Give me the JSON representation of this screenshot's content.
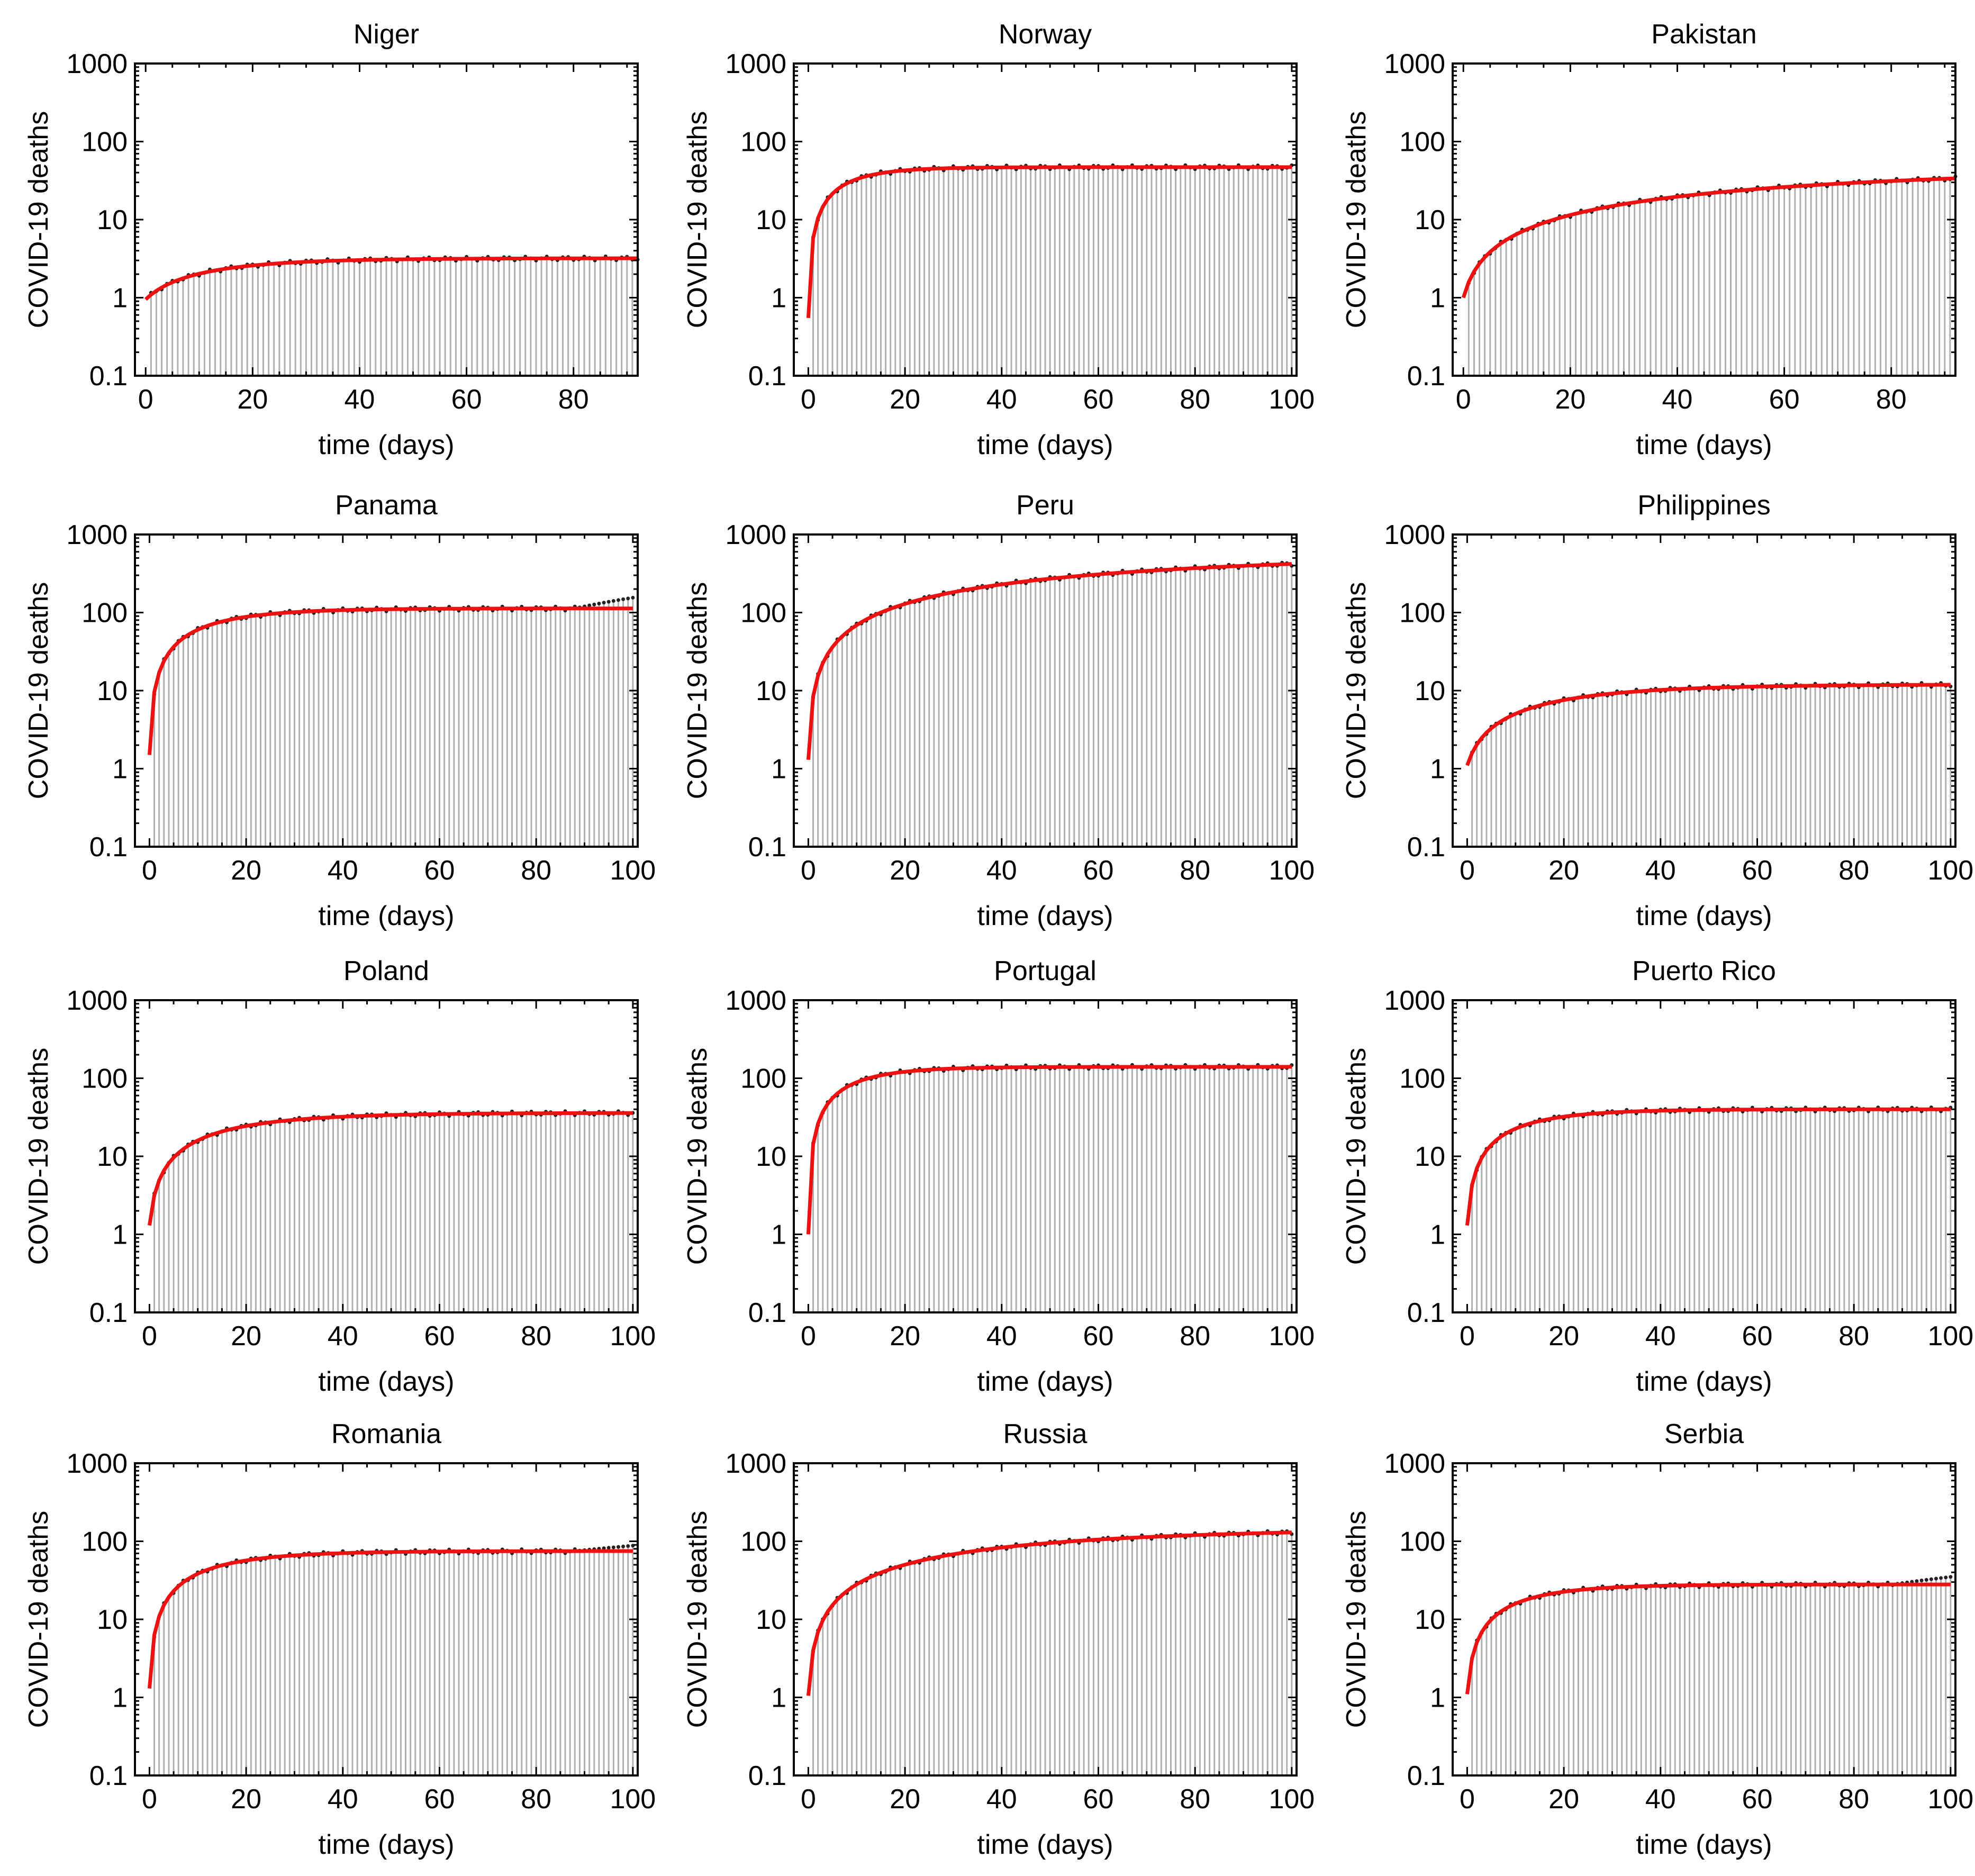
{
  "ylabel": "COVID-19 deaths",
  "xlabel": "time (days)",
  "y_ticks": [
    "0.1",
    "1",
    "10",
    "100",
    "1000"
  ],
  "colors": {
    "fit": "#ee1111",
    "points": "#222222",
    "bars": "#b0b0b0",
    "frame": "#000000"
  },
  "chart_data": [
    {
      "type": "line",
      "title": "Niger",
      "xlim": [
        -2,
        92
      ],
      "x_ticks": [
        0,
        20,
        40,
        60,
        80
      ],
      "ylim": [
        0.1,
        1000
      ],
      "yscale": "log",
      "n_days": 92,
      "fit": {
        "A": 3.2,
        "k": 0.065,
        "y0": 0.95
      }
    },
    {
      "type": "line",
      "title": "Norway",
      "xlim": [
        -3,
        101
      ],
      "x_ticks": [
        0,
        20,
        40,
        60,
        80,
        100
      ],
      "ylim": [
        0.1,
        1000
      ],
      "yscale": "log",
      "n_days": 100,
      "fit": {
        "A": 47,
        "k": 0.12,
        "y0": 0.55
      }
    },
    {
      "type": "line",
      "title": "Pakistan",
      "xlim": [
        -2,
        92
      ],
      "x_ticks": [
        0,
        20,
        40,
        60,
        80
      ],
      "ylim": [
        0.1,
        1000
      ],
      "yscale": "log",
      "n_days": 92,
      "fit": {
        "A": 50,
        "k": 0.012,
        "y0": 1.0
      }
    },
    {
      "type": "line",
      "title": "Panama",
      "xlim": [
        -3,
        101
      ],
      "x_ticks": [
        0,
        20,
        40,
        60,
        80,
        100
      ],
      "ylim": [
        0.1,
        1000
      ],
      "yscale": "log",
      "n_days": 100,
      "fit": {
        "A": 113,
        "k": 0.075,
        "y0": 1.5
      },
      "data_end": 155
    },
    {
      "type": "line",
      "title": "Peru",
      "xlim": [
        -3,
        101
      ],
      "x_ticks": [
        0,
        20,
        40,
        60,
        80,
        100
      ],
      "ylim": [
        0.1,
        1000
      ],
      "yscale": "log",
      "n_days": 100,
      "fit": {
        "A": 600,
        "k": 0.012,
        "y0": 1.3
      }
    },
    {
      "type": "line",
      "title": "Philippines",
      "xlim": [
        -3,
        101
      ],
      "x_ticks": [
        0,
        20,
        40,
        60,
        80,
        100
      ],
      "ylim": [
        0.1,
        1000
      ],
      "yscale": "log",
      "n_days": 100,
      "fit": {
        "A": 12,
        "k": 0.045,
        "y0": 1.1
      }
    },
    {
      "type": "line",
      "title": "Poland",
      "xlim": [
        -3,
        101
      ],
      "x_ticks": [
        0,
        20,
        40,
        60,
        80,
        100
      ],
      "ylim": [
        0.1,
        1000
      ],
      "yscale": "log",
      "n_days": 100,
      "fit": {
        "A": 36,
        "k": 0.055,
        "y0": 1.3
      }
    },
    {
      "type": "line",
      "title": "Portugal",
      "xlim": [
        -3,
        101
      ],
      "x_ticks": [
        0,
        20,
        40,
        60,
        80,
        100
      ],
      "ylim": [
        0.1,
        1000
      ],
      "yscale": "log",
      "n_days": 100,
      "fit": {
        "A": 140,
        "k": 0.1,
        "y0": 1.0
      }
    },
    {
      "type": "line",
      "title": "Puerto Rico",
      "xlim": [
        -3,
        101
      ],
      "x_ticks": [
        0,
        20,
        40,
        60,
        80,
        100
      ],
      "ylim": [
        0.1,
        1000
      ],
      "yscale": "log",
      "n_days": 100,
      "fit": {
        "A": 40,
        "k": 0.08,
        "y0": 1.3
      }
    },
    {
      "type": "line",
      "title": "Romania",
      "xlim": [
        -3,
        101
      ],
      "x_ticks": [
        0,
        20,
        40,
        60,
        80,
        100
      ],
      "ylim": [
        0.1,
        1000
      ],
      "yscale": "log",
      "n_days": 100,
      "fit": {
        "A": 75,
        "k": 0.07,
        "y0": 1.3
      },
      "data_end": 88
    },
    {
      "type": "line",
      "title": "Russia",
      "xlim": [
        -3,
        101
      ],
      "x_ticks": [
        0,
        20,
        40,
        60,
        80,
        100
      ],
      "ylim": [
        0.1,
        1000
      ],
      "yscale": "log",
      "n_days": 100,
      "fit": {
        "A": 150,
        "k": 0.02,
        "y0": 1.05
      }
    },
    {
      "type": "line",
      "title": "Serbia",
      "xlim": [
        -3,
        101
      ],
      "x_ticks": [
        0,
        20,
        40,
        60,
        80,
        100
      ],
      "ylim": [
        0.1,
        1000
      ],
      "yscale": "log",
      "n_days": 100,
      "fit": {
        "A": 28,
        "k": 0.08,
        "y0": 1.1
      },
      "data_end": 35
    }
  ]
}
